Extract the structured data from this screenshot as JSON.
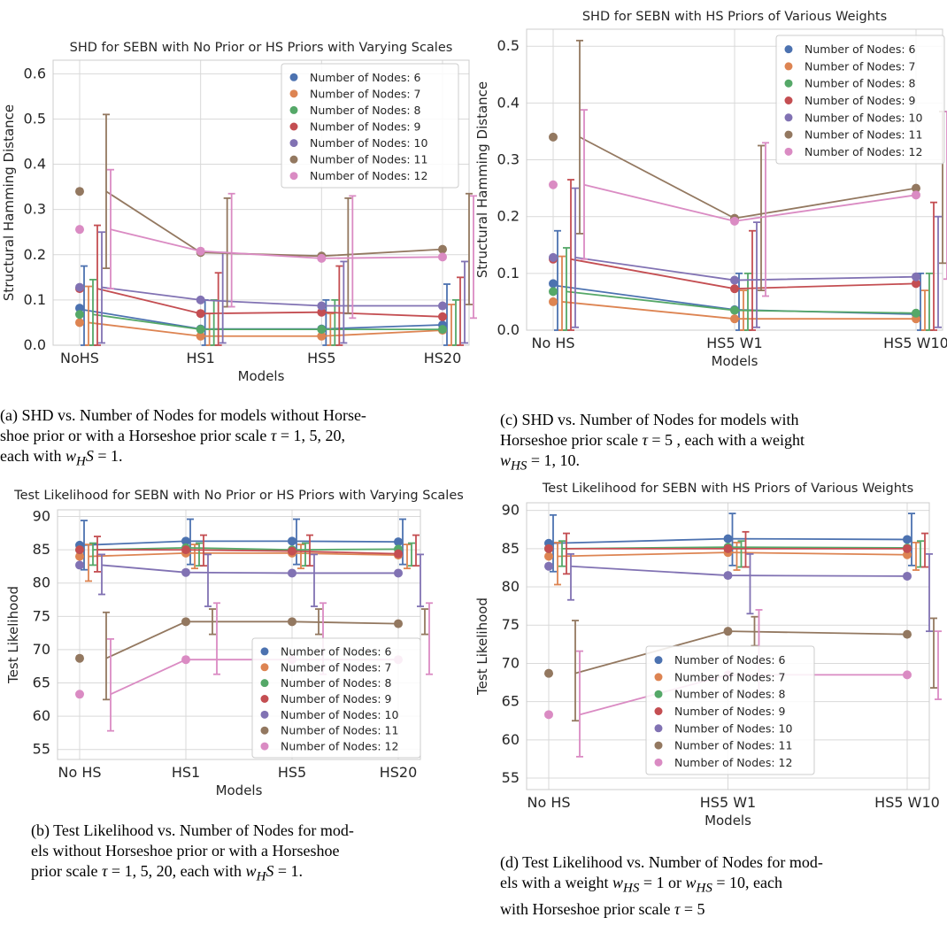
{
  "colors": [
    "#4c72b0",
    "#dd8452",
    "#55a868",
    "#c44e52",
    "#8172b3",
    "#937860",
    "#da8bc3"
  ],
  "legend_labels": [
    "Number of Nodes: 6",
    "Number of Nodes: 7",
    "Number of Nodes: 8",
    "Number of Nodes: 9",
    "Number of Nodes: 10",
    "Number of Nodes: 11",
    "Number of Nodes: 12"
  ],
  "captions": {
    "a": "(a) SHD vs. Number of Nodes for models without Horseshoe prior or with a Horseshoe prior scale τ = 1, 5, 20, each with w_HS = 1.",
    "b": "(b) Test Likelihood vs. Number of Nodes for models without Horseshoe prior or with a Horseshoe prior scale τ = 1, 5, 20, each with w_HS = 1.",
    "c": "(c) SHD vs. Number of Nodes for models with Horseshoe prior scale τ = 5 , each with a weight w_HS = 1, 10.",
    "d": "(d) Test Likelihood vs. Number of Nodes for models with a weight w_HS = 1 or w_HS = 10, each with Horseshoe prior scale τ = 5"
  },
  "chart_data": [
    {
      "id": "a",
      "type": "line",
      "title": "SHD for SEBN with No Prior or HS Priors with Varying Scales",
      "xlabel": "Models",
      "ylabel": "Structural Hamming Distance",
      "categories": [
        "NoHS",
        "HS1",
        "HS5",
        "HS20"
      ],
      "ylim": [
        0,
        0.63
      ],
      "yticks": [
        0.0,
        0.1,
        0.2,
        0.3,
        0.4,
        0.5,
        0.6
      ],
      "ytick_labels": [
        "0.0",
        "0.1",
        "0.2",
        "0.3",
        "0.4",
        "0.5",
        "0.6"
      ],
      "legend_position": "top-right",
      "grid": true,
      "series": [
        {
          "name": "Number of Nodes: 6",
          "points": [
            0.082,
            0.036,
            0.036,
            0.045
          ],
          "line": [
            0.078,
            0.036,
            0.036,
            0.045
          ],
          "err_low": [
            0.0,
            0.0,
            0.0,
            0.0
          ],
          "err_high": [
            0.175,
            0.1,
            0.1,
            0.135
          ]
        },
        {
          "name": "Number of Nodes: 7",
          "points": [
            0.05,
            0.02,
            0.02,
            0.033
          ],
          "line": [
            0.05,
            0.02,
            0.02,
            0.033
          ],
          "err_low": [
            0.0,
            0.0,
            0.0,
            0.0
          ],
          "err_high": [
            0.13,
            0.07,
            0.07,
            0.09
          ]
        },
        {
          "name": "Number of Nodes: 8",
          "points": [
            0.068,
            0.035,
            0.035,
            0.035
          ],
          "line": [
            0.068,
            0.035,
            0.035,
            0.035
          ],
          "err_low": [
            0.0,
            0.0,
            0.0,
            0.0
          ],
          "err_high": [
            0.145,
            0.1,
            0.1,
            0.1
          ]
        },
        {
          "name": "Number of Nodes: 9",
          "points": [
            0.125,
            0.07,
            0.073,
            0.063
          ],
          "line": [
            0.125,
            0.07,
            0.073,
            0.063
          ],
          "err_low": [
            0.0,
            0.0,
            0.0,
            0.0
          ],
          "err_high": [
            0.265,
            0.16,
            0.175,
            0.15
          ]
        },
        {
          "name": "Number of Nodes: 10",
          "points": [
            0.128,
            0.1,
            0.087,
            0.087
          ],
          "line": [
            0.128,
            0.1,
            0.087,
            0.087
          ],
          "err_low": [
            0.005,
            0.005,
            0.005,
            0.005
          ],
          "err_high": [
            0.25,
            0.205,
            0.185,
            0.185
          ]
        },
        {
          "name": "Number of Nodes: 11",
          "points": [
            0.34,
            0.205,
            0.197,
            0.212
          ],
          "line": [
            0.34,
            0.205,
            0.197,
            0.212
          ],
          "err_low": [
            0.17,
            0.085,
            0.07,
            0.09
          ],
          "err_high": [
            0.51,
            0.325,
            0.325,
            0.335
          ]
        },
        {
          "name": "Number of Nodes: 12",
          "points": [
            0.256,
            0.208,
            0.192,
            0.195
          ],
          "line": [
            0.256,
            0.208,
            0.192,
            0.195
          ],
          "err_low": [
            0.125,
            0.085,
            0.06,
            0.06
          ],
          "err_high": [
            0.388,
            0.335,
            0.33,
            0.33
          ]
        }
      ]
    },
    {
      "id": "c",
      "type": "line",
      "title": "SHD for SEBN with HS Priors of Various Weights",
      "xlabel": "Models",
      "ylabel": "Structural Hamming Distance",
      "categories": [
        "No HS",
        "HS5 W1",
        "HS5 W10"
      ],
      "ylim": [
        0,
        0.53
      ],
      "yticks": [
        0.0,
        0.1,
        0.2,
        0.3,
        0.4,
        0.5
      ],
      "ytick_labels": [
        "0.0",
        "0.1",
        "0.2",
        "0.3",
        "0.4",
        "0.5"
      ],
      "legend_position": "top-right",
      "grid": true,
      "series": [
        {
          "name": "Number of Nodes: 6",
          "points": [
            0.082,
            0.036,
            0.028
          ],
          "line": [
            0.078,
            0.036,
            0.028
          ],
          "err_low": [
            0.0,
            0.0,
            0.0
          ],
          "err_high": [
            0.175,
            0.1,
            0.1
          ]
        },
        {
          "name": "Number of Nodes: 7",
          "points": [
            0.05,
            0.02,
            0.02
          ],
          "line": [
            0.05,
            0.02,
            0.02
          ],
          "err_low": [
            0.0,
            0.0,
            0.0
          ],
          "err_high": [
            0.13,
            0.07,
            0.07
          ]
        },
        {
          "name": "Number of Nodes: 8",
          "points": [
            0.068,
            0.035,
            0.03
          ],
          "line": [
            0.068,
            0.035,
            0.03
          ],
          "err_low": [
            0.0,
            0.0,
            0.0
          ],
          "err_high": [
            0.145,
            0.1,
            0.1
          ]
        },
        {
          "name": "Number of Nodes: 9",
          "points": [
            0.125,
            0.073,
            0.082
          ],
          "line": [
            0.125,
            0.073,
            0.082
          ],
          "err_low": [
            0.0,
            0.0,
            0.0
          ],
          "err_high": [
            0.265,
            0.175,
            0.225
          ]
        },
        {
          "name": "Number of Nodes: 10",
          "points": [
            0.128,
            0.088,
            0.094
          ],
          "line": [
            0.128,
            0.088,
            0.094
          ],
          "err_low": [
            0.005,
            0.005,
            0.005
          ],
          "err_high": [
            0.25,
            0.19,
            0.2
          ]
        },
        {
          "name": "Number of Nodes: 11",
          "points": [
            0.34,
            0.197,
            0.25
          ],
          "line": [
            0.34,
            0.197,
            0.25
          ],
          "err_low": [
            0.17,
            0.07,
            0.118
          ],
          "err_high": [
            0.51,
            0.325,
            0.385
          ]
        },
        {
          "name": "Number of Nodes: 12",
          "points": [
            0.256,
            0.192,
            0.238
          ],
          "line": [
            0.256,
            0.192,
            0.238
          ],
          "err_low": [
            0.125,
            0.06,
            0.09
          ],
          "err_high": [
            0.388,
            0.33,
            0.385
          ]
        }
      ]
    },
    {
      "id": "b",
      "type": "line",
      "title": "Test Likelihood for SEBN with No Prior or HS Priors with Varying Scales",
      "xlabel": "Models",
      "ylabel": "Test Likelihood",
      "categories": [
        "No HS",
        "HS1",
        "HS5",
        "HS20"
      ],
      "ylim": [
        53.5,
        91
      ],
      "yticks": [
        55,
        60,
        65,
        70,
        75,
        80,
        85,
        90
      ],
      "ytick_labels": [
        "55",
        "60",
        "65",
        "70",
        "75",
        "80",
        "85",
        "90"
      ],
      "legend_position": "lower right",
      "grid": true,
      "series": [
        {
          "name": "Number of Nodes: 6",
          "points": [
            85.7,
            86.3,
            86.3,
            86.2
          ],
          "line": [
            85.7,
            86.3,
            86.3,
            86.2
          ],
          "err_low": [
            82.0,
            82.8,
            82.8,
            82.8
          ],
          "err_high": [
            89.4,
            89.6,
            89.6,
            89.6
          ]
        },
        {
          "name": "Number of Nodes: 7",
          "points": [
            84.0,
            84.5,
            84.5,
            84.2
          ],
          "line": [
            84.0,
            84.5,
            84.5,
            84.2
          ],
          "err_low": [
            80.3,
            82.2,
            82.2,
            82.2
          ],
          "err_high": [
            85.8,
            85.8,
            85.8,
            85.8
          ]
        },
        {
          "name": "Number of Nodes: 8",
          "points": [
            85.0,
            85.3,
            85.0,
            85.1
          ],
          "line": [
            85.0,
            85.3,
            85.0,
            85.1
          ],
          "err_low": [
            82.7,
            82.6,
            82.6,
            82.6
          ],
          "err_high": [
            86.0,
            86.0,
            86.0,
            86.0
          ]
        },
        {
          "name": "Number of Nodes: 9",
          "points": [
            85.0,
            85.0,
            84.8,
            84.4
          ],
          "line": [
            85.0,
            85.0,
            84.8,
            84.4
          ],
          "err_low": [
            81.7,
            82.6,
            82.6,
            82.6
          ],
          "err_high": [
            87.0,
            87.2,
            87.2,
            87.2
          ]
        },
        {
          "name": "Number of Nodes: 10",
          "points": [
            82.7,
            81.6,
            81.5,
            81.5
          ],
          "line": [
            82.7,
            81.6,
            81.5,
            81.5
          ],
          "err_low": [
            78.3,
            76.5,
            76.5,
            76.5
          ],
          "err_high": [
            84.3,
            84.3,
            84.3,
            84.3
          ]
        },
        {
          "name": "Number of Nodes: 11",
          "points": [
            68.7,
            74.2,
            74.2,
            73.9
          ],
          "line": [
            68.7,
            74.2,
            74.2,
            73.9
          ],
          "err_low": [
            62.5,
            72.3,
            72.3,
            72.3
          ],
          "err_high": [
            75.6,
            76.1,
            76.1,
            76.1
          ]
        },
        {
          "name": "Number of Nodes: 12",
          "points": [
            63.3,
            68.5,
            68.5,
            68.5
          ],
          "line": [
            63.3,
            68.5,
            68.5,
            68.5
          ],
          "err_low": [
            57.8,
            66.3,
            66.3,
            66.3
          ],
          "err_high": [
            71.6,
            77.0,
            77.0,
            77.0
          ]
        }
      ]
    },
    {
      "id": "d",
      "type": "line",
      "title": "Test Likelihood for SEBN with HS Priors of Various Weights",
      "xlabel": "Models",
      "ylabel": "Test Likelihood",
      "categories": [
        "No HS",
        "HS5 W1",
        "HS5 W10"
      ],
      "ylim": [
        53.5,
        91
      ],
      "yticks": [
        55,
        60,
        65,
        70,
        75,
        80,
        85,
        90
      ],
      "ytick_labels": [
        "55",
        "60",
        "65",
        "70",
        "75",
        "80",
        "85",
        "90"
      ],
      "legend_position": "lower center",
      "grid": true,
      "series": [
        {
          "name": "Number of Nodes: 6",
          "points": [
            85.7,
            86.3,
            86.2
          ],
          "line": [
            85.7,
            86.3,
            86.2
          ],
          "err_low": [
            82.0,
            82.8,
            82.8
          ],
          "err_high": [
            89.4,
            89.6,
            89.6
          ]
        },
        {
          "name": "Number of Nodes: 7",
          "points": [
            84.0,
            84.5,
            84.2
          ],
          "line": [
            84.0,
            84.5,
            84.2
          ],
          "err_low": [
            80.3,
            82.2,
            82.2
          ],
          "err_high": [
            85.8,
            85.8,
            85.8
          ]
        },
        {
          "name": "Number of Nodes: 8",
          "points": [
            85.0,
            85.2,
            85.1
          ],
          "line": [
            85.0,
            85.2,
            85.1
          ],
          "err_low": [
            82.7,
            82.6,
            82.6
          ],
          "err_high": [
            86.0,
            86.0,
            86.0
          ]
        },
        {
          "name": "Number of Nodes: 9",
          "points": [
            85.0,
            85.0,
            85.0
          ],
          "line": [
            85.0,
            85.0,
            85.0
          ],
          "err_low": [
            81.7,
            82.6,
            82.6
          ],
          "err_high": [
            87.0,
            87.2,
            87.0
          ]
        },
        {
          "name": "Number of Nodes: 10",
          "points": [
            82.7,
            81.5,
            81.4
          ],
          "line": [
            82.7,
            81.5,
            81.4
          ],
          "err_low": [
            78.3,
            76.5,
            74.2
          ],
          "err_high": [
            84.3,
            84.3,
            84.3
          ]
        },
        {
          "name": "Number of Nodes: 11",
          "points": [
            68.7,
            74.2,
            73.8
          ],
          "line": [
            68.7,
            74.2,
            73.8
          ],
          "err_low": [
            62.5,
            72.3,
            66.8
          ],
          "err_high": [
            75.6,
            76.1,
            75.9
          ]
        },
        {
          "name": "Number of Nodes: 12",
          "points": [
            63.3,
            68.5,
            68.5
          ],
          "line": [
            63.3,
            68.5,
            68.5
          ],
          "err_low": [
            57.8,
            66.3,
            65.3
          ],
          "err_high": [
            71.6,
            77.0,
            74.2
          ]
        }
      ]
    }
  ]
}
